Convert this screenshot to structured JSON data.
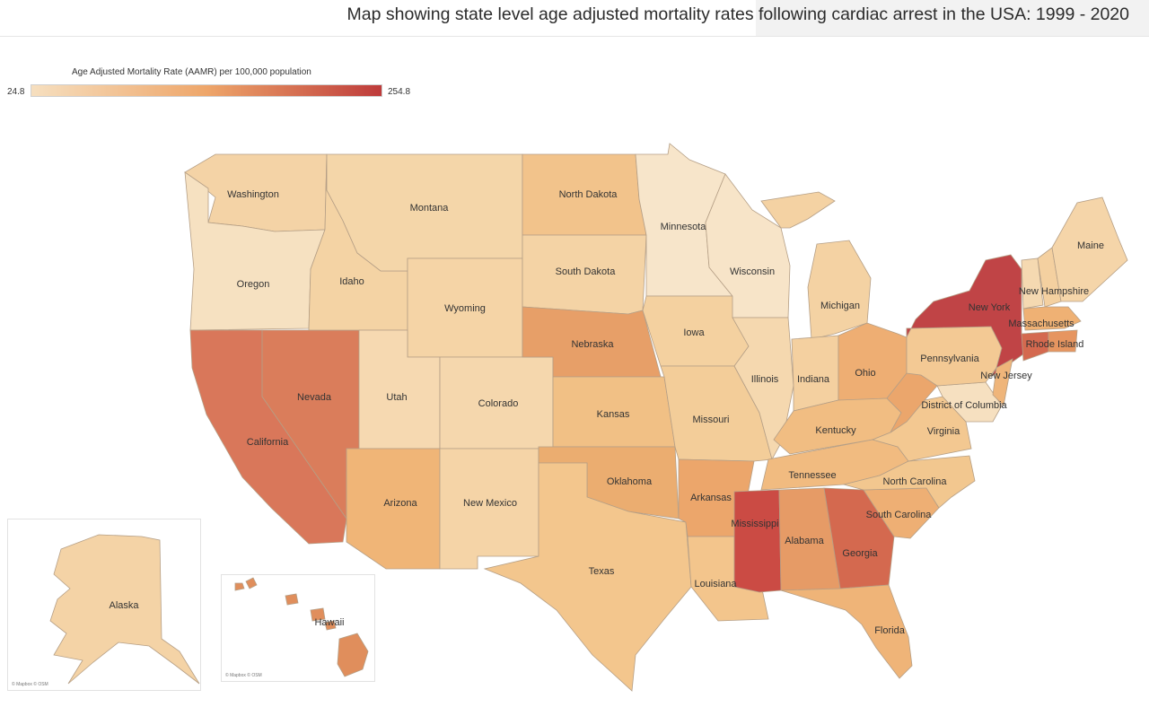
{
  "title": "Map showing state level age adjusted mortality rates following cardiac arrest in the USA: 1999 - 2020",
  "legend": {
    "title": "Age Adjusted Mortality Rate (AAMR) per 100,000 population",
    "min": "24.8",
    "max": "254.8",
    "min_value": 24.8,
    "max_value": 254.8,
    "color_min": "#f6dfbf",
    "color_mid": "#eea66a",
    "color_max": "#be3b3b"
  },
  "credits": {
    "alaska": "© Mapbox © OSM",
    "hawaii": "© Mapbox © OSM"
  },
  "states": [
    {
      "id": "washington",
      "label": "Washington",
      "color": "#f4d3a6"
    },
    {
      "id": "oregon",
      "label": "Oregon",
      "color": "#f6e1c1"
    },
    {
      "id": "california",
      "label": "California",
      "color": "#d9775a"
    },
    {
      "id": "nevada",
      "label": "Nevada",
      "color": "#da7d5b"
    },
    {
      "id": "idaho",
      "label": "Idaho",
      "color": "#f4d3a4"
    },
    {
      "id": "montana",
      "label": "Montana",
      "color": "#f4d6a9"
    },
    {
      "id": "wyoming",
      "label": "Wyoming",
      "color": "#f5d4a6"
    },
    {
      "id": "utah",
      "label": "Utah",
      "color": "#f6d9b1"
    },
    {
      "id": "colorado",
      "label": "Colorado",
      "color": "#f5d7ad"
    },
    {
      "id": "arizona",
      "label": "Arizona",
      "color": "#f0b577"
    },
    {
      "id": "new-mexico",
      "label": "New Mexico",
      "color": "#f5d4a7"
    },
    {
      "id": "north-dakota",
      "label": "North Dakota",
      "color": "#f2c38b"
    },
    {
      "id": "south-dakota",
      "label": "South Dakota",
      "color": "#f4d3a5"
    },
    {
      "id": "nebraska",
      "label": "Nebraska",
      "color": "#e79f68"
    },
    {
      "id": "kansas",
      "label": "Kansas",
      "color": "#f1c085"
    },
    {
      "id": "oklahoma",
      "label": "Oklahoma",
      "color": "#ebad70"
    },
    {
      "id": "texas",
      "label": "Texas",
      "color": "#f3c68d"
    },
    {
      "id": "minnesota",
      "label": "Minnesota",
      "color": "#f7e5ca"
    },
    {
      "id": "iowa",
      "label": "Iowa",
      "color": "#f4d1a0"
    },
    {
      "id": "missouri",
      "label": "Missouri",
      "color": "#f3cd99"
    },
    {
      "id": "arkansas",
      "label": "Arkansas",
      "color": "#eca66b"
    },
    {
      "id": "louisiana",
      "label": "Louisiana",
      "color": "#f3c58c"
    },
    {
      "id": "wisconsin",
      "label": "Wisconsin",
      "color": "#f7e4c8"
    },
    {
      "id": "illinois",
      "label": "Illinois",
      "color": "#f5d8af"
    },
    {
      "id": "michigan",
      "label": "Michigan",
      "color": "#f4d2a3"
    },
    {
      "id": "indiana",
      "label": "Indiana",
      "color": "#f4d0a0"
    },
    {
      "id": "ohio",
      "label": "Ohio",
      "color": "#eeae73"
    },
    {
      "id": "kentucky",
      "label": "Kentucky",
      "color": "#f1bd82"
    },
    {
      "id": "tennessee",
      "label": "Tennessee",
      "color": "#f1bb80"
    },
    {
      "id": "mississippi",
      "label": "Mississippi",
      "color": "#cb4b44"
    },
    {
      "id": "alabama",
      "label": "Alabama",
      "color": "#e69b66"
    },
    {
      "id": "georgia",
      "label": "Georgia",
      "color": "#d4694f"
    },
    {
      "id": "florida",
      "label": "Florida",
      "color": "#efb478"
    },
    {
      "id": "south-carolina",
      "label": "South Carolina",
      "color": "#eeaf74"
    },
    {
      "id": "north-carolina",
      "label": "North Carolina",
      "color": "#f2c78f"
    },
    {
      "id": "virginia",
      "label": "Virginia",
      "color": "#f3c891"
    },
    {
      "id": "west-virginia",
      "label": "",
      "color": "#eba66c"
    },
    {
      "id": "district-of-columbia",
      "label": "District of Columbia",
      "color": "#f6e0c0"
    },
    {
      "id": "pennsylvania",
      "label": "Pennsylvania",
      "color": "#f3c994"
    },
    {
      "id": "new-york",
      "label": "New York",
      "color": "#c04446"
    },
    {
      "id": "new-jersey",
      "label": "New Jersey",
      "color": "#efb57a"
    },
    {
      "id": "vermont",
      "label": "",
      "color": "#f5d9b1"
    },
    {
      "id": "new-hampshire",
      "label": "New Hampshire",
      "color": "#f4d0a0"
    },
    {
      "id": "maine",
      "label": "Maine",
      "color": "#f5d5a9"
    },
    {
      "id": "massachusetts",
      "label": "Massachusetts",
      "color": "#efb174"
    },
    {
      "id": "connecticut",
      "label": "",
      "color": "#d4694f"
    },
    {
      "id": "rhode-island",
      "label": "Rhode Island",
      "color": "#e69560"
    },
    {
      "id": "alaska",
      "label": "Alaska",
      "color": "#f4d3a6"
    },
    {
      "id": "hawaii",
      "label": "Hawaii",
      "color": "#e08e5c"
    }
  ]
}
